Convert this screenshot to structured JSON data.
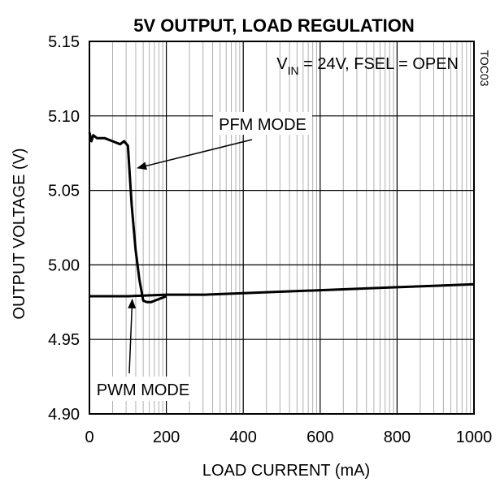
{
  "chart_data": {
    "type": "line",
    "title": "5V OUTPUT,  LOAD REGULATION",
    "xlabel": "LOAD CURRENT (mA)",
    "ylabel": "OUTPUT  VOLTAGE  (V)",
    "xlim": [
      0,
      1000
    ],
    "ylim": [
      4.9,
      5.15
    ],
    "x_ticks": [
      0,
      200,
      400,
      600,
      800,
      1000
    ],
    "x_tick_labels": [
      "0",
      "200",
      "400",
      "600",
      "800",
      "1000"
    ],
    "y_ticks": [
      4.9,
      4.95,
      5.0,
      5.05,
      5.1,
      5.15
    ],
    "y_tick_labels": [
      "4.90",
      "4.95",
      "5.00",
      "5.05",
      "5.10",
      "5.15"
    ],
    "x_scale": "log",
    "grid": true,
    "figure_id": "TOC03",
    "condition": {
      "prefix": "V",
      "sub": "IN",
      "rest": " = 24V, FSEL = OPEN"
    },
    "series": [
      {
        "name": "PFM MODE",
        "x": [
          0,
          5,
          10,
          20,
          40,
          60,
          80,
          90,
          100,
          110,
          120,
          130,
          140,
          150,
          160,
          170,
          180,
          190,
          200
        ],
        "y": [
          5.089,
          5.083,
          5.087,
          5.085,
          5.085,
          5.083,
          5.081,
          5.083,
          5.08,
          5.04,
          5.01,
          4.99,
          4.976,
          4.975,
          4.975,
          4.976,
          4.977,
          4.978,
          4.979
        ]
      },
      {
        "name": "PWM MODE",
        "x": [
          0,
          100,
          200,
          300,
          400,
          500,
          600,
          700,
          800,
          900,
          1000
        ],
        "y": [
          4.979,
          4.979,
          4.98,
          4.98,
          4.981,
          4.982,
          4.983,
          4.984,
          4.985,
          4.986,
          4.987
        ]
      }
    ],
    "annotations": [
      {
        "text": "PFM MODE",
        "target_series": 0,
        "target_x": 125,
        "target_y": 5.065
      },
      {
        "text": "PWM MODE",
        "target_series": 1,
        "target_x": 105,
        "target_y": 4.979
      }
    ]
  }
}
